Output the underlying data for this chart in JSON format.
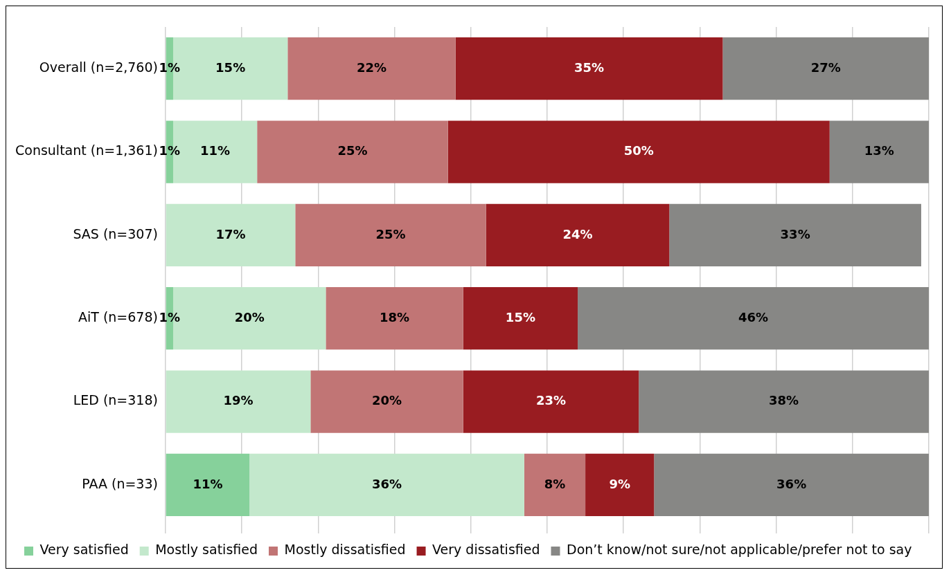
{
  "chart_data": {
    "type": "bar",
    "orientation": "horizontal",
    "stacked": true,
    "categories": [
      "Overall (n=2,760)",
      "Consultant (n=1,361)",
      "SAS (n=307)",
      "AiT (n=678)",
      "LED (n=318)",
      "PAA (n=33)"
    ],
    "series": [
      {
        "name": "Very satisfied",
        "color": "#86d19b",
        "values": [
          1,
          1,
          null,
          1,
          null,
          11
        ],
        "value_labels": [
          "1%",
          "1%",
          null,
          "1%",
          null,
          "11%"
        ]
      },
      {
        "name": "Mostly satisfied",
        "color": "#c3e8cc",
        "values": [
          15,
          11,
          17,
          20,
          19,
          36
        ],
        "value_labels": [
          "15%",
          "11%",
          "17%",
          "20%",
          "19%",
          "36%"
        ]
      },
      {
        "name": "Mostly dissatisfied",
        "color": "#c17575",
        "values": [
          22,
          25,
          25,
          18,
          20,
          8
        ],
        "value_labels": [
          "22%",
          "25%",
          "25%",
          "18%",
          "20%",
          "8%"
        ]
      },
      {
        "name": "Very dissatisfied",
        "color": "#991c21",
        "values": [
          35,
          50,
          24,
          15,
          23,
          9
        ],
        "value_labels": [
          "35%",
          "50%",
          "24%",
          "15%",
          "23%",
          "9%"
        ]
      },
      {
        "name": "Don’t know/not sure/not applicable/prefer not to say",
        "color": "#878785",
        "values": [
          27,
          13,
          33,
          46,
          38,
          36
        ],
        "value_labels": [
          "27%",
          "13%",
          "33%",
          "46%",
          "38%",
          "36%"
        ]
      }
    ],
    "xlim": [
      0,
      100
    ],
    "xticks": [
      {
        "value": 0,
        "label": null
      },
      {
        "value": 10,
        "label": null
      },
      {
        "value": 20,
        "label": null
      },
      {
        "value": 30,
        "label": null
      },
      {
        "value": 40,
        "label": null
      },
      {
        "value": 50,
        "label": null
      },
      {
        "value": 60,
        "label": null
      },
      {
        "value": 70,
        "label": null
      },
      {
        "value": 80,
        "label": null
      },
      {
        "value": 90,
        "label": null
      },
      {
        "value": 100,
        "label": null
      }
    ],
    "tick_labels": "y",
    "grid": "x",
    "legend": "bottom"
  }
}
